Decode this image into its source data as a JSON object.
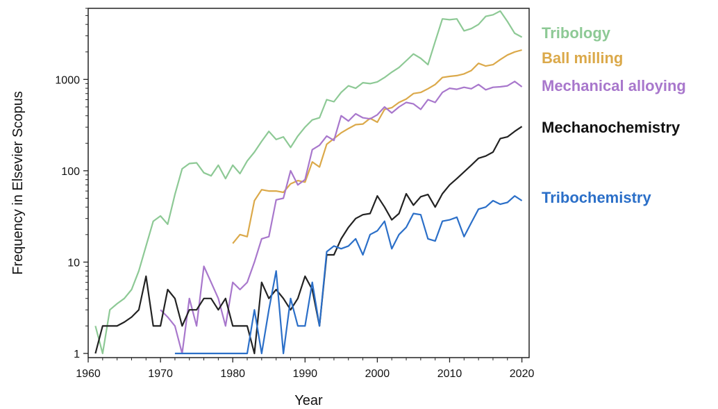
{
  "chart_data": {
    "type": "line",
    "title": "",
    "xlabel": "Year",
    "ylabel": "Frequency in Elsevier Scopus",
    "xlim": [
      1960,
      2021
    ],
    "ylim": [
      0.9,
      6000
    ],
    "yscale": "log",
    "x_ticks": [
      1960,
      1970,
      1980,
      1990,
      2000,
      2010,
      2020
    ],
    "y_ticks": [
      1,
      10,
      100,
      1000
    ],
    "y_tick_labels": [
      "1",
      "10",
      "100",
      "1000"
    ],
    "grid": false,
    "legend": "right, labels beside line ends",
    "series": [
      {
        "name": "Tribology",
        "color": "#8dc995",
        "x": [
          1961,
          1962,
          1963,
          1964,
          1965,
          1966,
          1967,
          1968,
          1969,
          1970,
          1971,
          1972,
          1973,
          1974,
          1975,
          1976,
          1977,
          1978,
          1979,
          1980,
          1981,
          1982,
          1983,
          1984,
          1985,
          1986,
          1987,
          1988,
          1989,
          1990,
          1991,
          1992,
          1993,
          1994,
          1995,
          1996,
          1997,
          1998,
          1999,
          2000,
          2001,
          2002,
          2003,
          2004,
          2005,
          2006,
          2007,
          2008,
          2009,
          2010,
          2011,
          2012,
          2013,
          2014,
          2015,
          2016,
          2017,
          2018,
          2019,
          2020
        ],
        "values": [
          2,
          1,
          3,
          3.5,
          4,
          5,
          8,
          15,
          28,
          32,
          26,
          55,
          105,
          120,
          122,
          95,
          88,
          115,
          82,
          115,
          93,
          128,
          160,
          210,
          270,
          220,
          235,
          180,
          240,
          300,
          360,
          380,
          600,
          570,
          720,
          850,
          800,
          920,
          900,
          940,
          1050,
          1200,
          1350,
          1600,
          1900,
          1700,
          1450,
          2600,
          4600,
          4500,
          4600,
          3400,
          3600,
          4000,
          4900,
          5100,
          5600,
          4300,
          3200,
          2900
        ]
      },
      {
        "name": "Ball milling",
        "color": "#dba94a",
        "x": [
          1980,
          1981,
          1982,
          1983,
          1984,
          1985,
          1986,
          1987,
          1988,
          1989,
          1990,
          1991,
          1992,
          1993,
          1994,
          1995,
          1996,
          1997,
          1998,
          1999,
          2000,
          2001,
          2002,
          2003,
          2004,
          2005,
          2006,
          2007,
          2008,
          2009,
          2010,
          2011,
          2012,
          2013,
          2014,
          2015,
          2016,
          2017,
          2018,
          2019,
          2020
        ],
        "values": [
          16,
          20,
          19,
          47,
          62,
          60,
          60,
          58,
          72,
          78,
          75,
          125,
          110,
          195,
          225,
          260,
          290,
          320,
          325,
          375,
          340,
          470,
          490,
          560,
          610,
          700,
          720,
          790,
          880,
          1050,
          1080,
          1100,
          1150,
          1250,
          1500,
          1400,
          1450,
          1650,
          1850,
          2000,
          2100
        ]
      },
      {
        "name": "Mechanical alloying",
        "color": "#a877cc",
        "x": [
          1970,
          1971,
          1972,
          1973,
          1974,
          1975,
          1976,
          1977,
          1978,
          1979,
          1980,
          1981,
          1982,
          1983,
          1984,
          1985,
          1986,
          1987,
          1988,
          1989,
          1990,
          1991,
          1992,
          1993,
          1994,
          1995,
          1996,
          1997,
          1998,
          1999,
          2000,
          2001,
          2002,
          2003,
          2004,
          2005,
          2006,
          2007,
          2008,
          2009,
          2010,
          2011,
          2012,
          2013,
          2014,
          2015,
          2016,
          2017,
          2018,
          2019,
          2020
        ],
        "values": [
          3,
          2.5,
          2,
          1,
          4,
          2,
          9,
          6,
          4,
          2,
          6,
          5,
          6,
          10,
          18,
          19,
          48,
          50,
          100,
          70,
          80,
          170,
          190,
          240,
          215,
          400,
          350,
          420,
          380,
          370,
          410,
          500,
          430,
          500,
          560,
          540,
          470,
          600,
          560,
          720,
          800,
          780,
          820,
          790,
          880,
          770,
          820,
          830,
          850,
          950,
          830
        ]
      },
      {
        "name": "Mechanochemistry",
        "color": "#222222",
        "x": [
          1961,
          1962,
          1963,
          1964,
          1965,
          1966,
          1967,
          1968,
          1969,
          1970,
          1971,
          1972,
          1973,
          1974,
          1975,
          1976,
          1977,
          1978,
          1979,
          1980,
          1981,
          1982,
          1983,
          1984,
          1985,
          1986,
          1987,
          1988,
          1989,
          1990,
          1991,
          1992,
          1993,
          1994,
          1995,
          1996,
          1997,
          1998,
          1999,
          2000,
          2001,
          2002,
          2003,
          2004,
          2005,
          2006,
          2007,
          2008,
          2009,
          2010,
          2011,
          2012,
          2013,
          2014,
          2015,
          2016,
          2017,
          2018,
          2019,
          2020
        ],
        "values": [
          1,
          2,
          2,
          2,
          2.2,
          2.5,
          3,
          7,
          2,
          2,
          5,
          4,
          2,
          3,
          3,
          4,
          4,
          3,
          4,
          2,
          2,
          2,
          1,
          6,
          4,
          5,
          4,
          3,
          4,
          7,
          5,
          2,
          12,
          12,
          18,
          24,
          30,
          33,
          34,
          53,
          40,
          29,
          34,
          56,
          42,
          52,
          55,
          40,
          56,
          70,
          82,
          97,
          115,
          137,
          145,
          160,
          225,
          235,
          270,
          305
        ]
      },
      {
        "name": "Tribochemistry",
        "color": "#2b6fc8",
        "x": [
          1972,
          1973,
          1974,
          1975,
          1976,
          1977,
          1978,
          1979,
          1980,
          1981,
          1982,
          1983,
          1984,
          1985,
          1986,
          1987,
          1988,
          1989,
          1990,
          1991,
          1992,
          1993,
          1994,
          1995,
          1996,
          1997,
          1998,
          1999,
          2000,
          2001,
          2002,
          2003,
          2004,
          2005,
          2006,
          2007,
          2008,
          2009,
          2010,
          2011,
          2012,
          2013,
          2014,
          2015,
          2016,
          2017,
          2018,
          2019,
          2020
        ],
        "values": [
          1,
          1,
          1,
          1,
          1,
          1,
          1,
          1,
          1,
          1,
          1,
          3,
          1,
          3,
          8,
          1,
          4,
          2,
          2,
          6,
          2,
          13,
          15,
          14,
          15,
          18,
          12,
          20,
          22,
          28,
          14,
          20,
          24,
          34,
          33,
          18,
          17,
          28,
          29,
          31,
          19,
          27,
          38,
          40,
          47,
          43,
          45,
          53,
          47
        ]
      }
    ],
    "series_label_colors": {
      "Tribology": "#8dc995",
      "Ball milling": "#dba94a",
      "Mechanical alloying": "#a877cc",
      "Mechanochemistry": "#111111",
      "Tribochemistry": "#2b6fc8"
    }
  }
}
